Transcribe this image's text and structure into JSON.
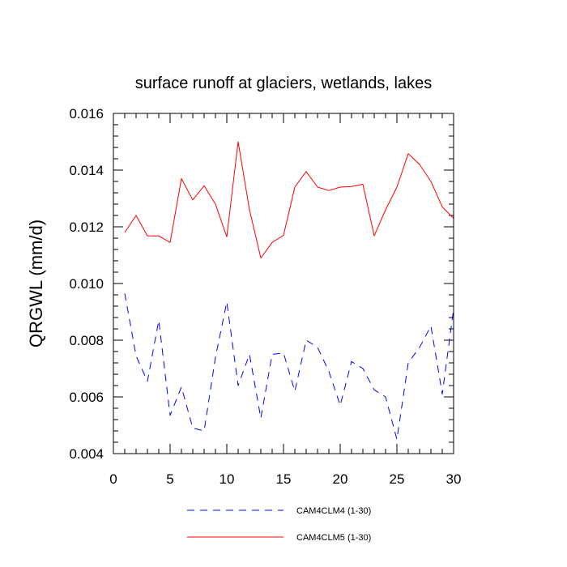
{
  "chart_data": {
    "type": "line",
    "title": "surface runoff at glaciers, wetlands, lakes",
    "ylabel": "QRGWL  (mm/d)",
    "xlabel": "",
    "xlim": [
      0,
      30
    ],
    "ylim": [
      0.004,
      0.016
    ],
    "x_ticks": [
      0,
      5,
      10,
      15,
      20,
      25,
      30
    ],
    "x_tick_labels": [
      "0",
      "5",
      "10",
      "15",
      "20",
      "25",
      "30"
    ],
    "y_ticks": [
      0.004,
      0.006,
      0.008,
      0.01,
      0.012,
      0.014,
      0.016
    ],
    "y_tick_labels": [
      "0.004",
      "0.006",
      "0.008",
      "0.010",
      "0.012",
      "0.014",
      "0.016"
    ],
    "grid": false,
    "legend_position": "bottom",
    "x": [
      1,
      2,
      3,
      4,
      5,
      6,
      7,
      8,
      9,
      10,
      11,
      12,
      13,
      14,
      15,
      16,
      17,
      18,
      19,
      20,
      21,
      22,
      23,
      24,
      25,
      26,
      27,
      28,
      29,
      30
    ],
    "series": [
      {
        "name": "CAM4CLM4 (1-30)",
        "color": "#0000ff",
        "dash": "dashed",
        "values": [
          0.00965,
          0.00745,
          0.00655,
          0.0087,
          0.00535,
          0.00635,
          0.0049,
          0.0048,
          0.0074,
          0.00935,
          0.0064,
          0.0075,
          0.00525,
          0.0075,
          0.00755,
          0.0062,
          0.008,
          0.00775,
          0.0069,
          0.0057,
          0.00725,
          0.007,
          0.00625,
          0.006,
          0.0045,
          0.0072,
          0.00775,
          0.0085,
          0.0061,
          0.0091
        ]
      },
      {
        "name": "CAM4CLM5 (1-30)",
        "color": "#ff0000",
        "dash": "solid",
        "values": [
          0.0118,
          0.0124,
          0.01168,
          0.01168,
          0.01145,
          0.0137,
          0.01295,
          0.01345,
          0.0128,
          0.01165,
          0.015,
          0.0126,
          0.0109,
          0.01145,
          0.0117,
          0.0134,
          0.01395,
          0.0134,
          0.01328,
          0.0134,
          0.01342,
          0.0135,
          0.01168,
          0.0126,
          0.0134,
          0.01458,
          0.0142,
          0.0136,
          0.0127,
          0.0123
        ]
      }
    ]
  }
}
